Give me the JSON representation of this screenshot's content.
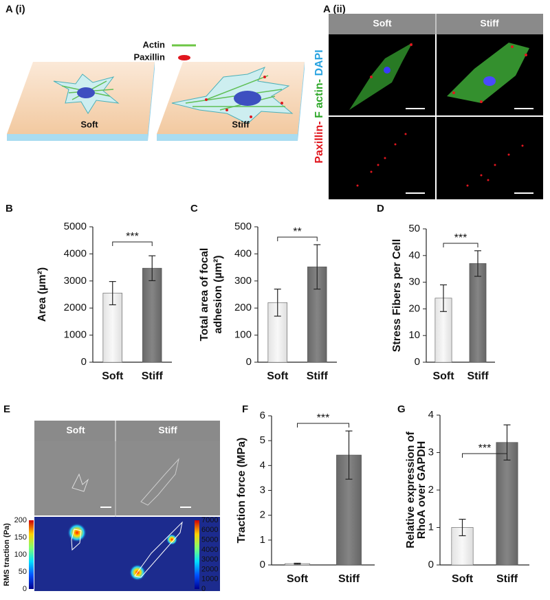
{
  "figure": {
    "panel_labels": {
      "a_i": "A (i)",
      "a_ii": "A (ii)",
      "b": "B",
      "c": "C",
      "d": "D",
      "e": "E",
      "f": "F",
      "g": "G"
    },
    "a_i": {
      "legend": [
        "Actin",
        "Paxillin"
      ],
      "slabs": [
        "Soft",
        "Stiff"
      ]
    },
    "a_ii": {
      "columns": [
        "Soft",
        "Stiff"
      ],
      "stain_label": [
        "Paxillin-",
        "F actin-",
        "DAPI"
      ]
    },
    "e": {
      "columns": [
        "Soft",
        "Stiff"
      ],
      "colorbar_title": "RMS traction (Pa)",
      "left_ticks": [
        0,
        50,
        100,
        150,
        200
      ],
      "right_ticks": [
        0,
        1000,
        2000,
        3000,
        4000,
        5000,
        6000,
        7000
      ]
    }
  },
  "chart_data": [
    {
      "type": "bar",
      "ylabel": [
        "Area (µm²)"
      ],
      "categories": [
        "Soft",
        "Stiff"
      ],
      "values": [
        2550,
        3470
      ],
      "errors": [
        430,
        460
      ],
      "colors": [
        "#f0f0f0",
        "#7a7a7a"
      ],
      "ylim": [
        0,
        5000
      ],
      "yticks": [
        0,
        1000,
        2000,
        3000,
        4000,
        5000
      ],
      "significance": "***"
    },
    {
      "type": "bar",
      "ylabel": [
        "Total area of focal",
        "adhesion (µm²)"
      ],
      "categories": [
        "Soft",
        "Stiff"
      ],
      "values": [
        220,
        352
      ],
      "errors": [
        50,
        82
      ],
      "colors": [
        "#f0f0f0",
        "#7a7a7a"
      ],
      "ylim": [
        0,
        500
      ],
      "yticks": [
        0,
        100,
        200,
        300,
        400,
        500
      ],
      "significance": "**"
    },
    {
      "type": "bar",
      "ylabel": [
        "Stress Fibers per Cell"
      ],
      "categories": [
        "Soft",
        "Stiff"
      ],
      "values": [
        24,
        37
      ],
      "errors": [
        5,
        4.8
      ],
      "colors": [
        "#f0f0f0",
        "#7a7a7a"
      ],
      "ylim": [
        0,
        50
      ],
      "yticks": [
        0,
        10,
        20,
        30,
        40,
        50
      ],
      "significance": "***"
    },
    {
      "type": "bar",
      "ylabel": [
        "Traction force (MPa)"
      ],
      "categories": [
        "Soft",
        "Stiff"
      ],
      "values": [
        0.05,
        4.42
      ],
      "errors": [
        0.02,
        0.97
      ],
      "colors": [
        "#f0f0f0",
        "#7a7a7a"
      ],
      "ylim": [
        0,
        6
      ],
      "yticks": [
        0,
        1,
        2,
        3,
        4,
        5,
        6
      ],
      "significance": "***"
    },
    {
      "type": "bar",
      "ylabel": [
        "Relative expression of",
        "RhoA over GAPDH"
      ],
      "categories": [
        "Soft",
        "Stiff"
      ],
      "values": [
        1,
        3.27
      ],
      "errors": [
        0.22,
        0.47
      ],
      "colors": [
        "#f0f0f0",
        "#7a7a7a"
      ],
      "ylim": [
        0,
        4
      ],
      "yticks": [
        0,
        1,
        2,
        3,
        4
      ],
      "significance": "***"
    }
  ]
}
